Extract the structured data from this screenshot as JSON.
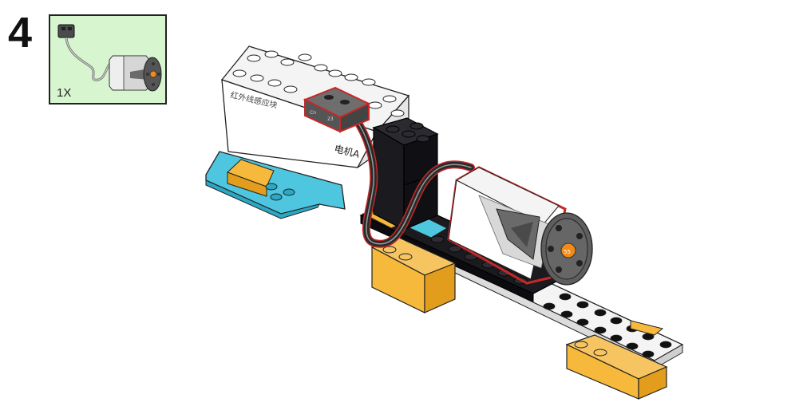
{
  "step": {
    "number": "4"
  },
  "parts_list": {
    "quantity": "1X",
    "part_icon": "motor-with-cable-icon"
  },
  "model": {
    "hub_label_top": "红外线感应块",
    "hub_label_side": "电机A",
    "connector_label_left": "Cn",
    "connector_label_right": "23",
    "motor_hub_label": "55"
  },
  "colors": {
    "parts_box_bg": "#d7f6cf",
    "brick_white": "#f4f4f4",
    "brick_black": "#1b1b1f",
    "brick_yellow": "#f6b93b",
    "brick_cyan": "#4fc6df",
    "motor_gray": "#5e5e5e",
    "highlight_outline": "#c62828",
    "orange_hub": "#f08a1a"
  }
}
